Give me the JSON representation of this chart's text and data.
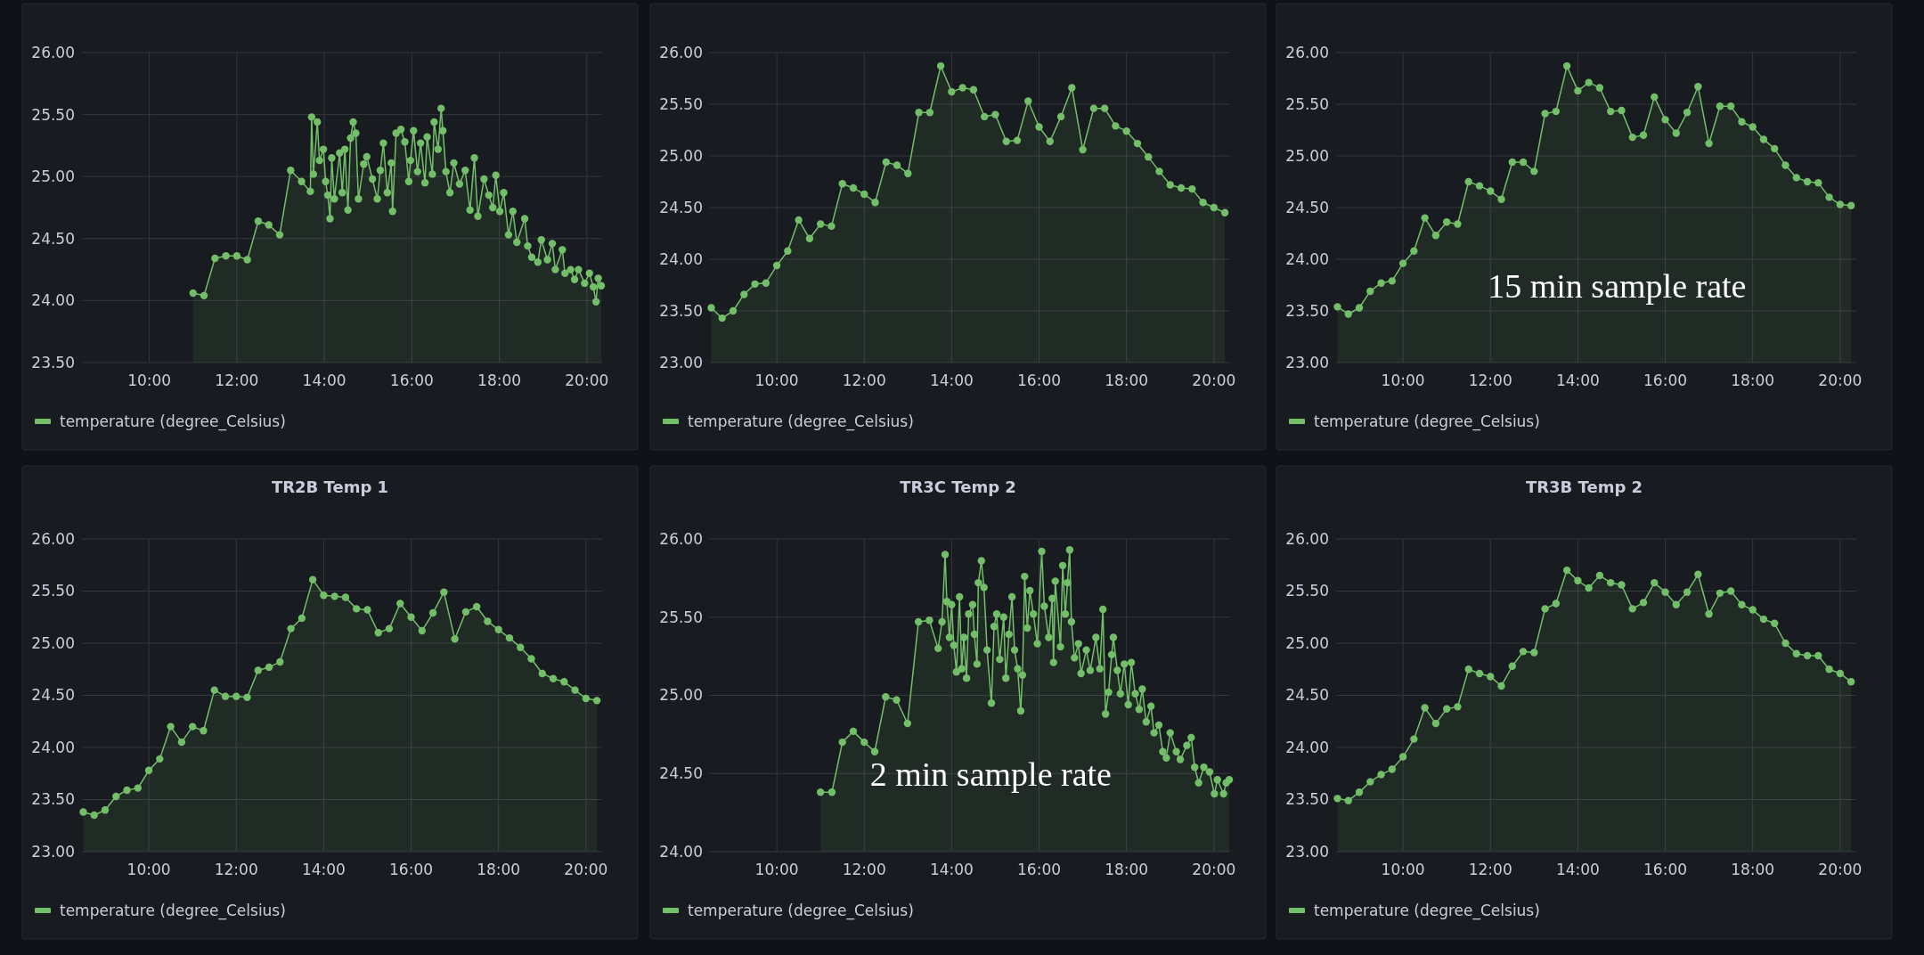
{
  "chart_data": [
    {
      "type": "area",
      "xlim": [
        8.46,
        20.35
      ],
      "ylim": [
        23.5,
        26
      ],
      "xticks": [
        {
          "value": 10,
          "label": "10:00"
        },
        {
          "value": 12,
          "label": "12:00"
        },
        {
          "value": 14,
          "label": "14:00"
        },
        {
          "value": 16,
          "label": "16:00"
        },
        {
          "value": 18,
          "label": "18:00"
        },
        {
          "value": 20,
          "label": "20:00"
        }
      ],
      "yticks": [
        {
          "value": 23.5,
          "label": "23.50"
        },
        {
          "value": 24,
          "label": "24.00"
        },
        {
          "value": 24.5,
          "label": "24.50"
        },
        {
          "value": 25,
          "label": "25.00"
        },
        {
          "value": 25.5,
          "label": "25.50"
        },
        {
          "value": 26,
          "label": "26.00"
        }
      ],
      "grid": true,
      "legend": "bottom",
      "marker": "circle",
      "series": [
        {
          "name": "temperature (degree_Celsius)",
          "color": "#73bf69",
          "x": [
            11.0,
            11.25,
            11.5,
            11.75,
            12.0,
            12.24,
            12.49,
            12.73,
            12.98,
            13.23,
            13.48,
            13.68,
            13.71,
            13.75,
            13.84,
            13.89,
            13.98,
            14.03,
            14.08,
            14.13,
            14.17,
            14.23,
            14.35,
            14.41,
            14.47,
            14.54,
            14.6,
            14.66,
            14.72,
            14.78,
            14.9,
            14.97,
            15.1,
            15.21,
            15.28,
            15.35,
            15.44,
            15.53,
            15.56,
            15.64,
            15.75,
            15.84,
            15.93,
            15.97,
            16.04,
            16.13,
            16.2,
            16.3,
            16.35,
            16.47,
            16.51,
            16.6,
            16.67,
            16.71,
            16.78,
            16.87,
            16.96,
            17.09,
            17.22,
            17.33,
            17.43,
            17.51,
            17.65,
            17.76,
            17.85,
            17.92,
            18.01,
            18.1,
            18.21,
            18.31,
            18.4,
            18.58,
            18.65,
            18.74,
            18.88,
            18.96,
            19.1,
            19.21,
            19.28,
            19.44,
            19.5,
            19.63,
            19.72,
            19.81,
            19.95,
            20.06,
            20.15,
            20.21,
            20.26,
            20.33
          ],
          "values": [
            24.06,
            24.04,
            24.34,
            24.36,
            24.36,
            24.33,
            24.64,
            24.61,
            24.53,
            25.05,
            24.96,
            24.88,
            25.48,
            25.02,
            25.44,
            25.13,
            25.22,
            24.96,
            24.85,
            24.66,
            25.15,
            24.82,
            25.19,
            24.87,
            25.22,
            24.73,
            25.31,
            25.44,
            25.35,
            24.82,
            25.1,
            25.16,
            24.98,
            24.82,
            25.05,
            25.27,
            24.87,
            25.11,
            24.72,
            25.35,
            25.38,
            25.28,
            24.96,
            25.13,
            25.37,
            25.04,
            25.27,
            24.95,
            25.32,
            25.02,
            25.44,
            25.22,
            25.55,
            25.37,
            25.04,
            24.87,
            25.11,
            24.94,
            25.05,
            24.73,
            25.15,
            24.68,
            24.98,
            24.85,
            24.75,
            25.01,
            24.72,
            24.87,
            24.53,
            24.72,
            24.47,
            24.66,
            24.44,
            24.35,
            24.31,
            24.49,
            24.33,
            24.46,
            24.25,
            24.41,
            24.22,
            24.25,
            24.17,
            24.25,
            24.14,
            24.22,
            24.11,
            23.99,
            24.18,
            24.12
          ]
        }
      ]
    },
    {
      "type": "area",
      "xlim": [
        8.47,
        20.37
      ],
      "ylim": [
        23,
        26
      ],
      "xticks": [
        {
          "value": 10,
          "label": "10:00"
        },
        {
          "value": 12,
          "label": "12:00"
        },
        {
          "value": 14,
          "label": "14:00"
        },
        {
          "value": 16,
          "label": "16:00"
        },
        {
          "value": 18,
          "label": "18:00"
        },
        {
          "value": 20,
          "label": "20:00"
        }
      ],
      "yticks": [
        {
          "value": 23,
          "label": "23.00"
        },
        {
          "value": 23.5,
          "label": "23.50"
        },
        {
          "value": 24,
          "label": "24.00"
        },
        {
          "value": 24.5,
          "label": "24.50"
        },
        {
          "value": 25,
          "label": "25.00"
        },
        {
          "value": 25.5,
          "label": "25.50"
        },
        {
          "value": 26,
          "label": "26.00"
        }
      ],
      "grid": true,
      "legend": "bottom",
      "marker": "circle",
      "series": [
        {
          "name": "temperature (degree_Celsius)",
          "color": "#73bf69",
          "x": [
            8.5,
            8.75,
            9,
            9.25,
            9.5,
            9.75,
            10,
            10.25,
            10.5,
            10.75,
            11,
            11.25,
            11.5,
            11.75,
            12,
            12.25,
            12.5,
            12.75,
            13,
            13.25,
            13.5,
            13.75,
            14,
            14.25,
            14.5,
            14.75,
            15,
            15.25,
            15.5,
            15.75,
            16,
            16.25,
            16.5,
            16.75,
            17,
            17.25,
            17.5,
            17.75,
            18,
            18.25,
            18.5,
            18.75,
            19,
            19.25,
            19.5,
            19.75,
            20,
            20.25
          ],
          "values": [
            23.53,
            23.43,
            23.5,
            23.66,
            23.76,
            23.77,
            23.94,
            24.08,
            24.38,
            24.2,
            24.34,
            24.32,
            24.73,
            24.69,
            24.63,
            24.55,
            24.94,
            24.91,
            24.83,
            25.42,
            25.42,
            25.87,
            25.62,
            25.66,
            25.64,
            25.38,
            25.4,
            25.14,
            25.15,
            25.53,
            25.28,
            25.14,
            25.38,
            25.66,
            25.06,
            25.46,
            25.46,
            25.29,
            25.24,
            25.12,
            24.99,
            24.85,
            24.72,
            24.69,
            24.68,
            24.55,
            24.5,
            24.45
          ]
        }
      ]
    },
    {
      "type": "area",
      "annotations": [
        "15 min sample rate"
      ],
      "xlim": [
        8.47,
        20.37
      ],
      "ylim": [
        23,
        26
      ],
      "xticks": [
        {
          "value": 10,
          "label": "10:00"
        },
        {
          "value": 12,
          "label": "12:00"
        },
        {
          "value": 14,
          "label": "14:00"
        },
        {
          "value": 16,
          "label": "16:00"
        },
        {
          "value": 18,
          "label": "18:00"
        },
        {
          "value": 20,
          "label": "20:00"
        }
      ],
      "yticks": [
        {
          "value": 23,
          "label": "23.00"
        },
        {
          "value": 23.5,
          "label": "23.50"
        },
        {
          "value": 24,
          "label": "24.00"
        },
        {
          "value": 24.5,
          "label": "24.50"
        },
        {
          "value": 25,
          "label": "25.00"
        },
        {
          "value": 25.5,
          "label": "25.50"
        },
        {
          "value": 26,
          "label": "26.00"
        }
      ],
      "grid": true,
      "legend": "bottom",
      "marker": "circle",
      "series": [
        {
          "name": "temperature (degree_Celsius)",
          "color": "#73bf69",
          "x": [
            8.5,
            8.75,
            9,
            9.25,
            9.5,
            9.75,
            10,
            10.25,
            10.5,
            10.75,
            11,
            11.25,
            11.5,
            11.75,
            12,
            12.25,
            12.5,
            12.75,
            13,
            13.25,
            13.5,
            13.75,
            14,
            14.25,
            14.5,
            14.75,
            15,
            15.25,
            15.5,
            15.75,
            16,
            16.25,
            16.5,
            16.75,
            17,
            17.25,
            17.5,
            17.75,
            18,
            18.25,
            18.5,
            18.75,
            19,
            19.25,
            19.5,
            19.75,
            20,
            20.25
          ],
          "values": [
            23.54,
            23.47,
            23.53,
            23.69,
            23.77,
            23.79,
            23.96,
            24.08,
            24.4,
            24.23,
            24.36,
            24.34,
            24.75,
            24.71,
            24.66,
            24.58,
            24.94,
            24.94,
            24.85,
            25.41,
            25.43,
            25.87,
            25.63,
            25.71,
            25.66,
            25.43,
            25.44,
            25.18,
            25.2,
            25.57,
            25.35,
            25.22,
            25.42,
            25.67,
            25.12,
            25.48,
            25.48,
            25.33,
            25.28,
            25.16,
            25.07,
            24.91,
            24.79,
            24.75,
            24.74,
            24.6,
            24.53,
            24.52
          ]
        }
      ]
    },
    {
      "type": "area",
      "title": "TR2B Temp 1",
      "xlim": [
        8.47,
        20.37
      ],
      "ylim": [
        23,
        26
      ],
      "xticks": [
        {
          "value": 10,
          "label": "10:00"
        },
        {
          "value": 12,
          "label": "12:00"
        },
        {
          "value": 14,
          "label": "14:00"
        },
        {
          "value": 16,
          "label": "16:00"
        },
        {
          "value": 18,
          "label": "18:00"
        },
        {
          "value": 20,
          "label": "20:00"
        }
      ],
      "yticks": [
        {
          "value": 23,
          "label": "23.00"
        },
        {
          "value": 23.5,
          "label": "23.50"
        },
        {
          "value": 24,
          "label": "24.00"
        },
        {
          "value": 24.5,
          "label": "24.50"
        },
        {
          "value": 25,
          "label": "25.00"
        },
        {
          "value": 25.5,
          "label": "25.50"
        },
        {
          "value": 26,
          "label": "26.00"
        }
      ],
      "grid": true,
      "legend": "bottom",
      "marker": "circle",
      "series": [
        {
          "name": "temperature (degree_Celsius)",
          "color": "#73bf69",
          "x": [
            8.5,
            8.75,
            9,
            9.25,
            9.5,
            9.75,
            10,
            10.25,
            10.5,
            10.75,
            11,
            11.25,
            11.5,
            11.75,
            12,
            12.25,
            12.5,
            12.75,
            13,
            13.25,
            13.5,
            13.75,
            14,
            14.25,
            14.5,
            14.75,
            15,
            15.25,
            15.5,
            15.75,
            16,
            16.25,
            16.5,
            16.75,
            17,
            17.25,
            17.5,
            17.75,
            18,
            18.25,
            18.5,
            18.75,
            19,
            19.25,
            19.5,
            19.75,
            20,
            20.25
          ],
          "values": [
            23.38,
            23.35,
            23.4,
            23.53,
            23.59,
            23.61,
            23.78,
            23.89,
            24.2,
            24.05,
            24.2,
            24.16,
            24.55,
            24.49,
            24.49,
            24.48,
            24.74,
            24.77,
            24.82,
            25.14,
            25.24,
            25.61,
            25.46,
            25.45,
            25.44,
            25.33,
            25.32,
            25.1,
            25.14,
            25.38,
            25.25,
            25.12,
            25.29,
            25.49,
            25.04,
            25.3,
            25.35,
            25.21,
            25.13,
            25.05,
            24.96,
            24.85,
            24.71,
            24.66,
            24.63,
            24.55,
            24.47,
            24.45
          ]
        }
      ]
    },
    {
      "type": "area",
      "title": "TR3C Temp 2",
      "annotations": [
        "2 min sample rate"
      ],
      "xlim": [
        8.47,
        20.37
      ],
      "ylim": [
        24,
        26
      ],
      "xticks": [
        {
          "value": 10,
          "label": "10:00"
        },
        {
          "value": 12,
          "label": "12:00"
        },
        {
          "value": 14,
          "label": "14:00"
        },
        {
          "value": 16,
          "label": "16:00"
        },
        {
          "value": 18,
          "label": "18:00"
        },
        {
          "value": 20,
          "label": "20:00"
        }
      ],
      "yticks": [
        {
          "value": 24,
          "label": "24.00"
        },
        {
          "value": 24.5,
          "label": "24.50"
        },
        {
          "value": 25,
          "label": "25.00"
        },
        {
          "value": 25.5,
          "label": "25.50"
        },
        {
          "value": 26,
          "label": "26.00"
        }
      ],
      "grid": true,
      "legend": "bottom",
      "marker": "circle",
      "series": [
        {
          "name": "temperature (degree_Celsius)",
          "color": "#73bf69",
          "x": [
            11.0,
            11.26,
            11.5,
            11.75,
            12.0,
            12.24,
            12.49,
            12.74,
            12.99,
            13.24,
            13.49,
            13.69,
            13.78,
            13.85,
            13.89,
            13.95,
            14.0,
            14.05,
            14.11,
            14.18,
            14.23,
            14.28,
            14.34,
            14.39,
            14.48,
            14.52,
            14.58,
            14.61,
            14.68,
            14.74,
            14.81,
            14.91,
            14.97,
            15.03,
            15.1,
            15.19,
            15.24,
            15.31,
            15.38,
            15.44,
            15.51,
            15.58,
            15.62,
            15.67,
            15.73,
            15.79,
            15.87,
            15.96,
            16.06,
            16.12,
            16.22,
            16.3,
            16.33,
            16.37,
            16.49,
            16.54,
            16.6,
            16.65,
            16.7,
            16.74,
            16.81,
            16.9,
            16.96,
            17.08,
            17.17,
            17.3,
            17.39,
            17.46,
            17.52,
            17.59,
            17.66,
            17.7,
            17.79,
            17.86,
            17.95,
            18.04,
            18.11,
            18.2,
            18.29,
            18.36,
            18.45,
            18.56,
            18.63,
            18.74,
            18.83,
            18.91,
            19.0,
            19.14,
            19.23,
            19.38,
            19.48,
            19.56,
            19.65,
            19.77,
            19.9,
            20.01,
            20.08,
            20.22,
            20.28,
            20.35
          ],
          "values": [
            24.38,
            24.38,
            24.7,
            24.77,
            24.7,
            24.64,
            24.99,
            24.97,
            24.82,
            25.47,
            25.48,
            25.3,
            25.47,
            25.9,
            25.6,
            25.37,
            25.58,
            25.32,
            25.15,
            25.63,
            25.17,
            25.37,
            25.11,
            25.52,
            25.58,
            25.39,
            25.2,
            25.72,
            25.86,
            25.69,
            25.29,
            24.95,
            25.44,
            25.52,
            25.23,
            25.5,
            25.11,
            25.39,
            25.63,
            25.29,
            25.17,
            24.9,
            25.13,
            25.76,
            25.43,
            25.67,
            25.52,
            25.33,
            25.92,
            25.57,
            25.37,
            25.62,
            25.21,
            25.73,
            25.31,
            25.83,
            25.52,
            25.72,
            25.93,
            25.47,
            25.24,
            25.33,
            25.14,
            25.29,
            25.16,
            25.37,
            25.17,
            25.55,
            24.88,
            25.02,
            25.26,
            25.37,
            25.16,
            25.01,
            25.2,
            24.94,
            25.21,
            25.01,
            24.91,
            25.04,
            24.83,
            24.93,
            24.76,
            24.81,
            24.64,
            24.6,
            24.76,
            24.64,
            24.59,
            24.68,
            24.73,
            24.54,
            24.44,
            24.54,
            24.51,
            24.37,
            24.46,
            24.37,
            24.44,
            24.46
          ]
        }
      ]
    },
    {
      "type": "area",
      "title": "TR3B Temp 2",
      "xlim": [
        8.47,
        20.37
      ],
      "ylim": [
        23,
        26
      ],
      "xticks": [
        {
          "value": 10,
          "label": "10:00"
        },
        {
          "value": 12,
          "label": "12:00"
        },
        {
          "value": 14,
          "label": "14:00"
        },
        {
          "value": 16,
          "label": "16:00"
        },
        {
          "value": 18,
          "label": "18:00"
        },
        {
          "value": 20,
          "label": "20:00"
        }
      ],
      "yticks": [
        {
          "value": 23,
          "label": "23.00"
        },
        {
          "value": 23.5,
          "label": "23.50"
        },
        {
          "value": 24,
          "label": "24.00"
        },
        {
          "value": 24.5,
          "label": "24.50"
        },
        {
          "value": 25,
          "label": "25.00"
        },
        {
          "value": 25.5,
          "label": "25.50"
        },
        {
          "value": 26,
          "label": "26.00"
        }
      ],
      "grid": true,
      "legend": "bottom",
      "marker": "circle",
      "series": [
        {
          "name": "temperature (degree_Celsius)",
          "color": "#73bf69",
          "x": [
            8.5,
            8.75,
            9,
            9.25,
            9.5,
            9.75,
            10,
            10.25,
            10.5,
            10.75,
            11,
            11.25,
            11.5,
            11.75,
            12,
            12.25,
            12.5,
            12.75,
            13,
            13.25,
            13.5,
            13.75,
            14,
            14.25,
            14.5,
            14.75,
            15,
            15.25,
            15.5,
            15.75,
            16,
            16.25,
            16.5,
            16.75,
            17,
            17.25,
            17.5,
            17.75,
            18,
            18.25,
            18.5,
            18.75,
            19,
            19.25,
            19.5,
            19.75,
            20,
            20.25
          ],
          "values": [
            23.51,
            23.49,
            23.57,
            23.67,
            23.74,
            23.79,
            23.91,
            24.08,
            24.38,
            24.23,
            24.37,
            24.39,
            24.75,
            24.71,
            24.68,
            24.59,
            24.78,
            24.92,
            24.91,
            25.33,
            25.38,
            25.7,
            25.6,
            25.53,
            25.65,
            25.58,
            25.56,
            25.33,
            25.39,
            25.58,
            25.49,
            25.37,
            25.49,
            25.66,
            25.28,
            25.48,
            25.5,
            25.37,
            25.32,
            25.23,
            25.19,
            25.0,
            24.9,
            24.88,
            24.88,
            24.75,
            24.71,
            24.63
          ]
        }
      ]
    }
  ]
}
